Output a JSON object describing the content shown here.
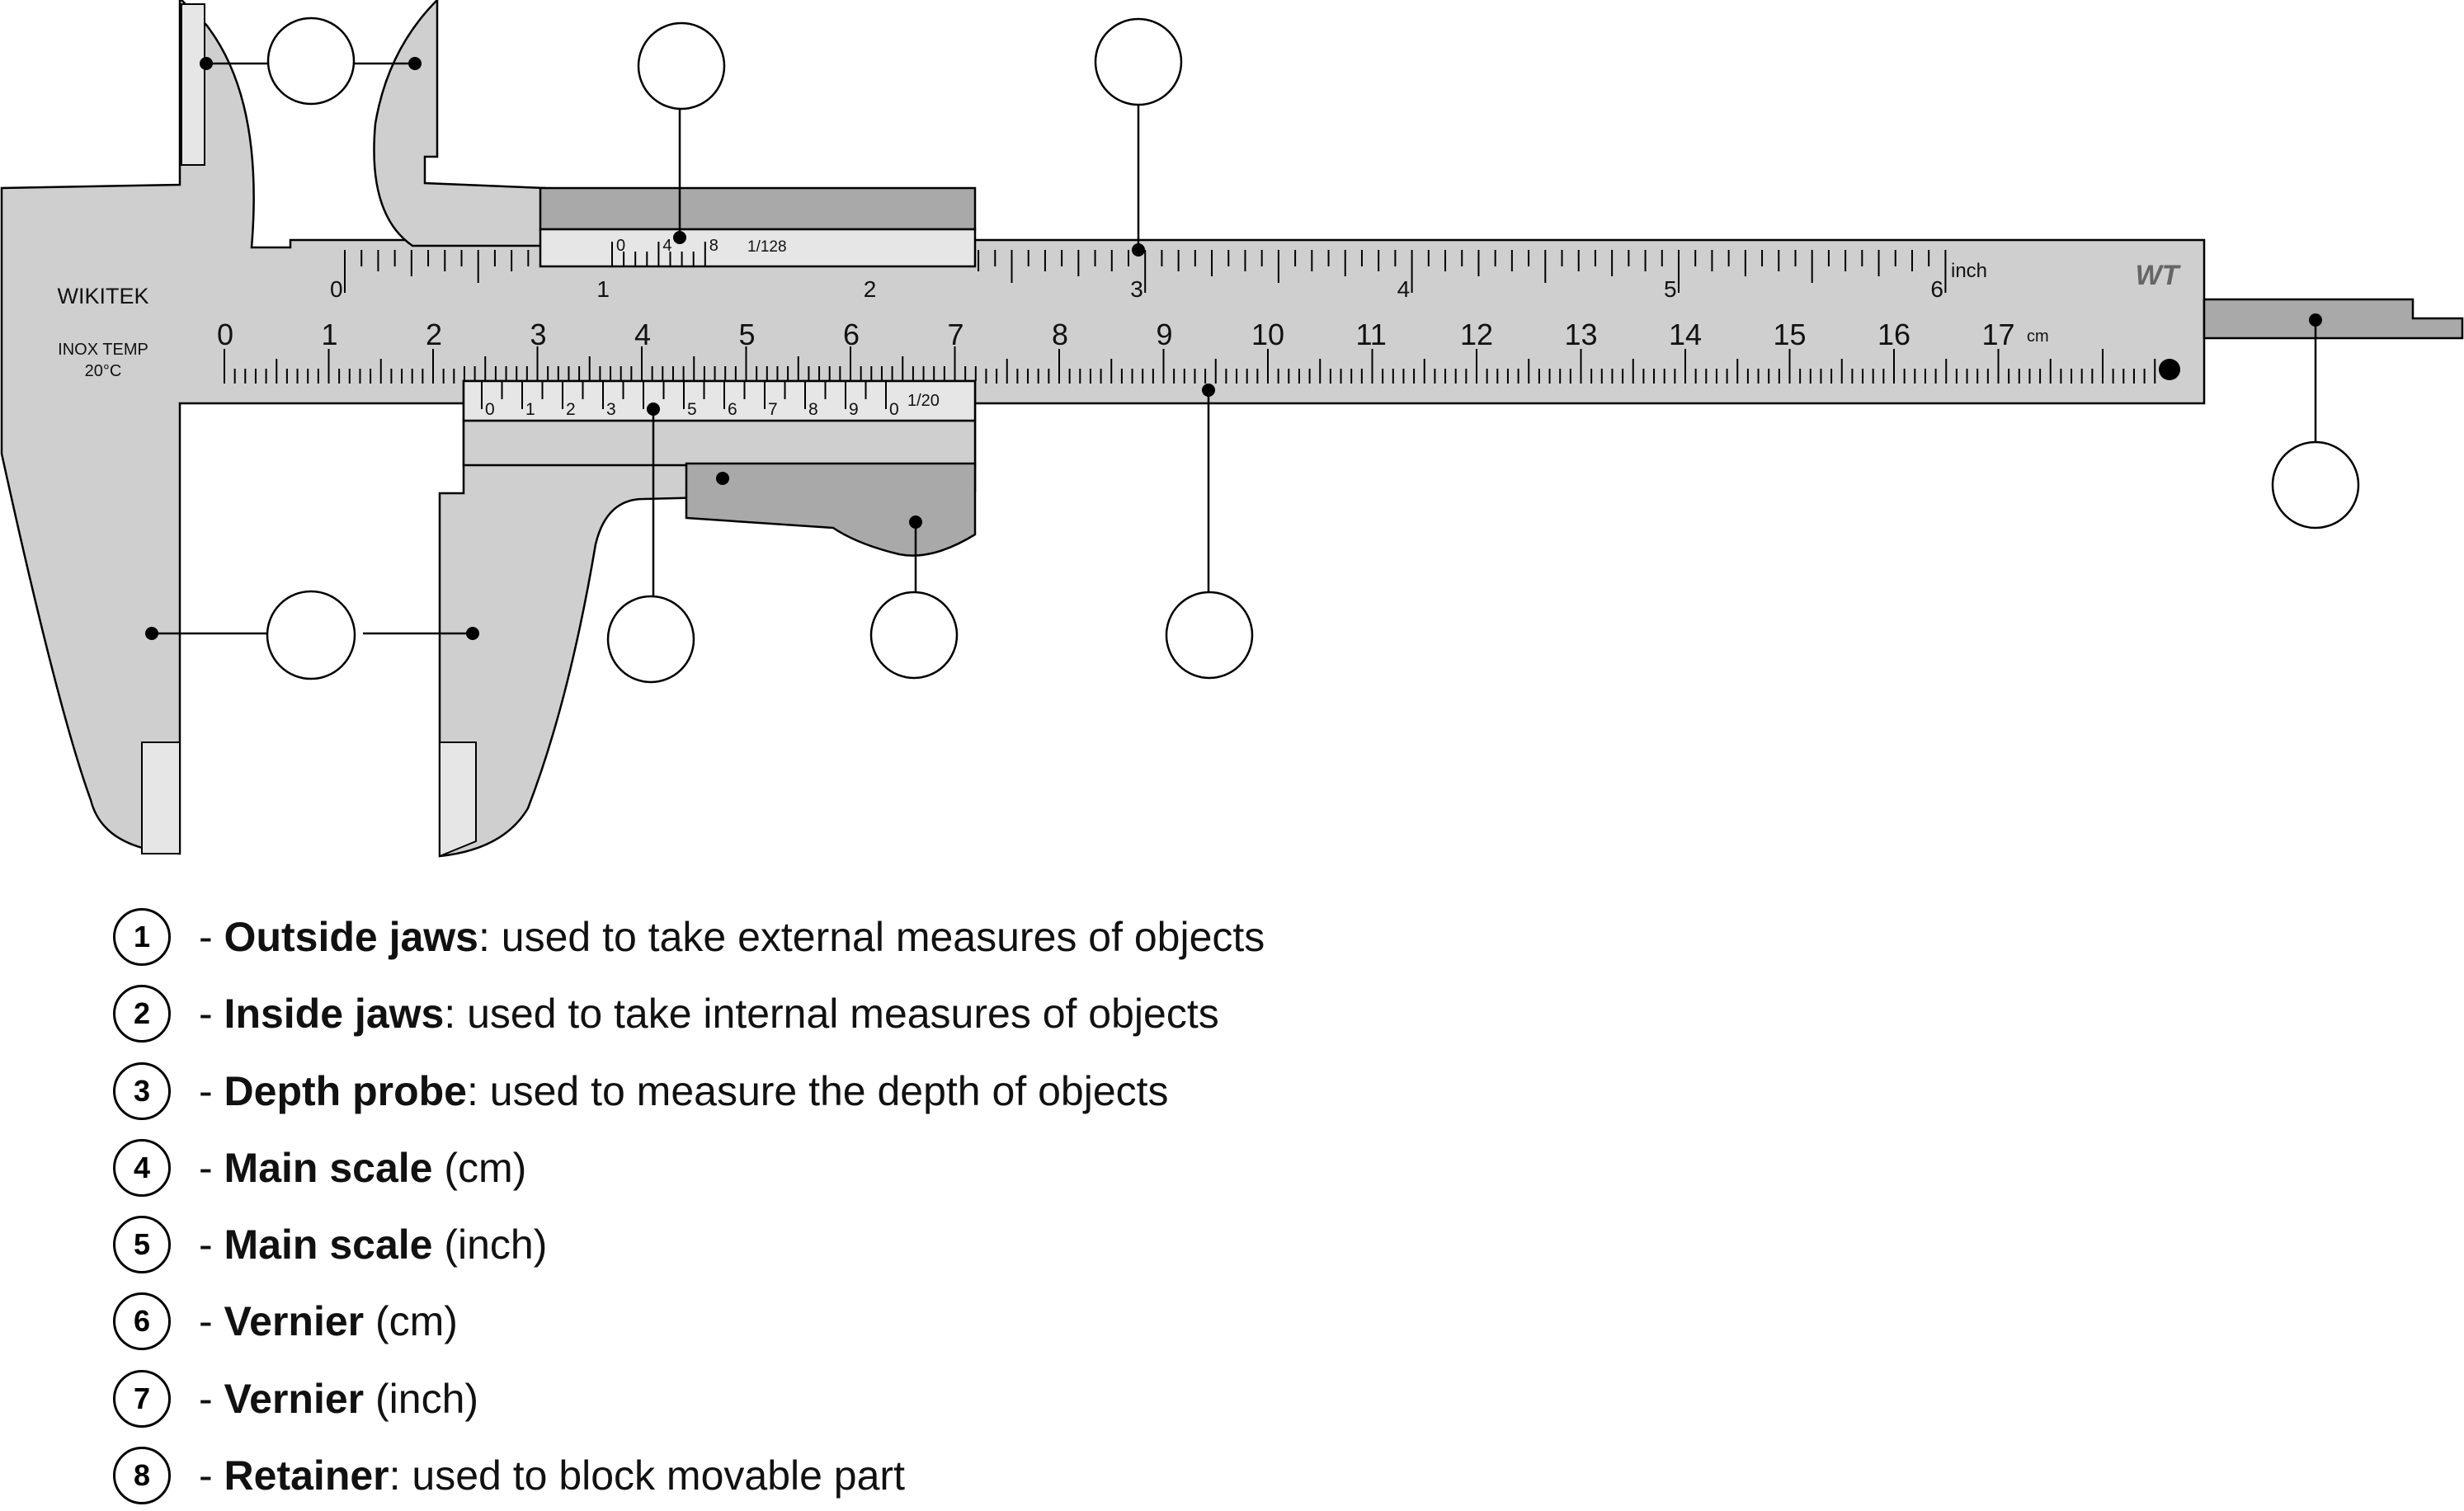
{
  "caliper": {
    "brand": "WIKITEK",
    "temp_line1": "INOX TEMP",
    "temp_line2": "20°C",
    "logo": "WT",
    "inch_unit": "inch",
    "cm_unit": "cm",
    "inch_vernier_label": "1/128",
    "cm_vernier_label": "1/20",
    "inch_numbers": [
      "0",
      "1",
      "2",
      "3",
      "4",
      "5",
      "6"
    ],
    "cm_numbers": [
      "0",
      "1",
      "2",
      "3",
      "4",
      "5",
      "6",
      "7",
      "8",
      "9",
      "10",
      "11",
      "12",
      "13",
      "14",
      "15",
      "16",
      "17"
    ],
    "inch_vernier_numbers": [
      "0",
      "4",
      "8"
    ],
    "cm_vernier_numbers": [
      "0",
      "1",
      "2",
      "3",
      "4",
      "5",
      "6",
      "7",
      "8",
      "9",
      "0"
    ]
  },
  "colors": {
    "body_fill": "#cfcfcf",
    "dark_fill": "#a9a9a9",
    "light_fill": "#e6e6e6",
    "stroke": "#000000"
  },
  "legend": [
    {
      "num": "1",
      "term": "Outside jaws",
      "rest": ": used to take external measures of objects"
    },
    {
      "num": "2",
      "term": "Inside jaws",
      "rest": ": used to take internal measures of objects"
    },
    {
      "num": "3",
      "term": "Depth probe",
      "rest": ": used to measure the depth of objects"
    },
    {
      "num": "4",
      "term": "Main scale",
      "rest": " (cm)"
    },
    {
      "num": "5",
      "term": "Main scale",
      "rest": " (inch)"
    },
    {
      "num": "6",
      "term": "Vernier",
      "rest": " (cm)"
    },
    {
      "num": "7",
      "term": "Vernier",
      "rest": " (inch)"
    },
    {
      "num": "8",
      "term": "Retainer",
      "rest": ": used to block movable part"
    }
  ]
}
